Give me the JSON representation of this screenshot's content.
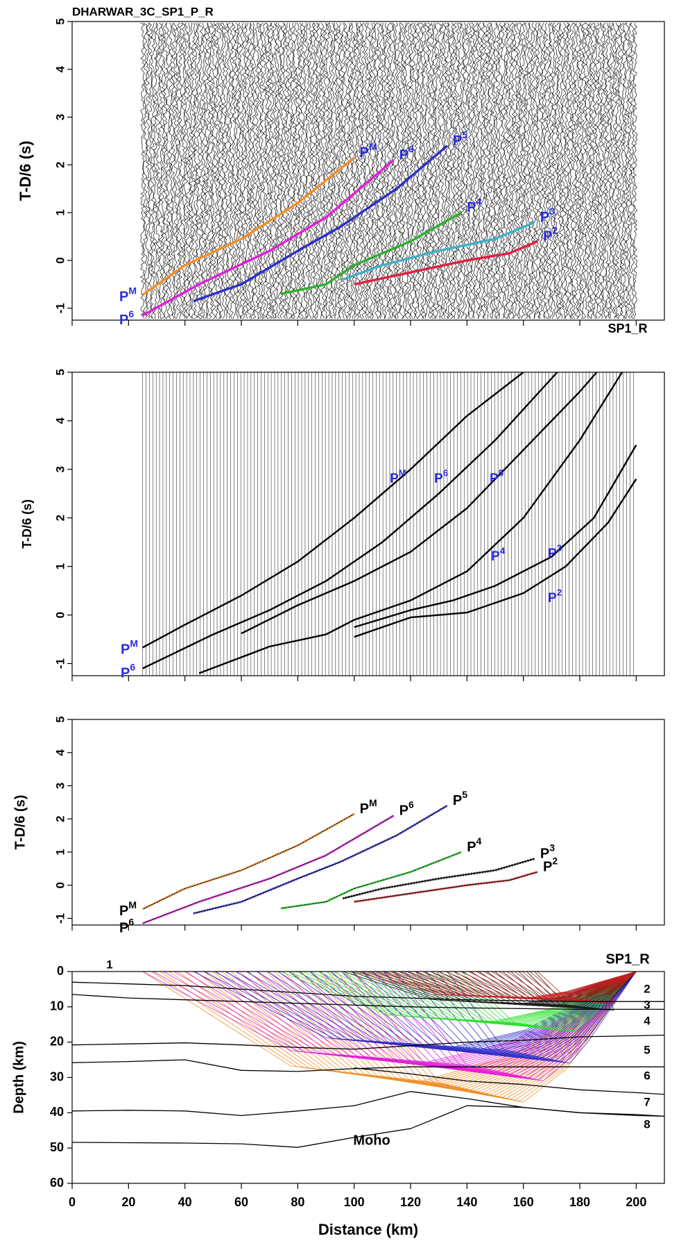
{
  "chart_data": [
    {
      "type": "line",
      "title": "DHARWAR_3C_SP1_P_R",
      "y_label": "T-D/6 (s)",
      "annotations": [
        "SP1_R"
      ],
      "xlim": [
        0,
        210
      ],
      "ylim": [
        -1.25,
        5
      ],
      "yticks": [
        -1,
        0,
        1,
        2,
        3,
        4,
        5
      ],
      "label_color": "#2a2ae0",
      "series": [
        {
          "name": "P",
          "superscript": "M",
          "color": "#f0902a",
          "x": [
            25,
            40,
            60,
            80,
            100
          ],
          "values": [
            -0.72,
            -0.1,
            0.45,
            1.2,
            2.15
          ]
        },
        {
          "name": "P",
          "superscript": "6",
          "color": "#e020d8",
          "x": [
            25,
            45,
            70,
            90,
            114
          ],
          "values": [
            -1.15,
            -0.5,
            0.2,
            0.9,
            2.1
          ]
        },
        {
          "name": "P",
          "superscript": "5",
          "color": "#3030c8",
          "x": [
            43,
            60,
            80,
            95,
            115,
            133
          ],
          "values": [
            -0.85,
            -0.5,
            0.2,
            0.7,
            1.5,
            2.4
          ]
        },
        {
          "name": "P",
          "superscript": "4",
          "color": "#30b030",
          "x": [
            74,
            90,
            100,
            120,
            138
          ],
          "values": [
            -0.7,
            -0.5,
            -0.1,
            0.4,
            1.0
          ]
        },
        {
          "name": "P",
          "superscript": "3",
          "color": "#40b0c8",
          "x": [
            96,
            110,
            130,
            150,
            164
          ],
          "values": [
            -0.4,
            -0.1,
            0.2,
            0.45,
            0.8
          ]
        },
        {
          "name": "P",
          "superscript": "2",
          "color": "#e02040",
          "x": [
            100,
            120,
            140,
            155,
            165
          ],
          "values": [
            -0.5,
            -0.25,
            0.0,
            0.15,
            0.4
          ]
        }
      ]
    },
    {
      "type": "line",
      "y_label": "T-D/6 (s)",
      "xlim": [
        0,
        210
      ],
      "ylim": [
        -1.25,
        5
      ],
      "yticks": [
        -1,
        0,
        1,
        2,
        3,
        4,
        5
      ],
      "label_color": "#2a2ae0",
      "series": [
        {
          "name": "P",
          "superscript": "M",
          "color": "#000000",
          "x": [
            25,
            40,
            60,
            80,
            100,
            120,
            140,
            160
          ],
          "values": [
            -0.67,
            -0.2,
            0.4,
            1.1,
            2.0,
            3.0,
            4.1,
            5.0
          ]
        },
        {
          "name": "P",
          "superscript": "6",
          "color": "#000000",
          "x": [
            25,
            50,
            70,
            90,
            110,
            130,
            150,
            172
          ],
          "values": [
            -1.1,
            -0.4,
            0.1,
            0.7,
            1.5,
            2.5,
            3.6,
            5.0
          ]
        },
        {
          "name": "P",
          "superscript": "5",
          "color": "#000000",
          "x": [
            60,
            80,
            100,
            120,
            140,
            160,
            180,
            186
          ],
          "values": [
            -0.38,
            0.2,
            0.7,
            1.3,
            2.2,
            3.4,
            4.6,
            5.0
          ]
        },
        {
          "name": "P",
          "superscript": "4",
          "color": "#000000",
          "x": [
            45,
            70,
            90,
            100,
            120,
            140,
            160,
            180,
            195
          ],
          "values": [
            -1.2,
            -0.65,
            -0.4,
            -0.1,
            0.3,
            0.9,
            2.0,
            3.6,
            5.0
          ]
        },
        {
          "name": "P",
          "superscript": "3",
          "color": "#000000",
          "x": [
            100,
            120,
            135,
            150,
            170,
            185,
            200
          ],
          "values": [
            -0.25,
            0.1,
            0.3,
            0.6,
            1.2,
            2.0,
            3.5
          ]
        },
        {
          "name": "P",
          "superscript": "2",
          "color": "#000000",
          "x": [
            100,
            120,
            140,
            160,
            175,
            190,
            200
          ],
          "values": [
            -0.45,
            -0.05,
            0.05,
            0.45,
            1.0,
            1.9,
            2.8
          ]
        }
      ]
    },
    {
      "type": "line",
      "y_label": "T-D/6 (s)",
      "xlim": [
        0,
        210
      ],
      "ylim": [
        -1.2,
        5
      ],
      "yticks": [
        -1,
        0,
        1,
        2,
        3,
        4,
        5
      ],
      "label_color": "#000000",
      "series": [
        {
          "name": "P",
          "superscript": "M",
          "color": "#f0902a",
          "x": [
            25,
            40,
            60,
            80,
            100
          ],
          "values": [
            -0.72,
            -0.1,
            0.45,
            1.2,
            2.15
          ]
        },
        {
          "name": "P",
          "superscript": "6",
          "color": "#e020d8",
          "x": [
            25,
            45,
            70,
            90,
            114
          ],
          "values": [
            -1.15,
            -0.5,
            0.2,
            0.9,
            2.1
          ]
        },
        {
          "name": "P",
          "superscript": "5",
          "color": "#3030c8",
          "x": [
            43,
            60,
            80,
            95,
            115,
            133
          ],
          "values": [
            -0.85,
            -0.5,
            0.2,
            0.7,
            1.5,
            2.4
          ]
        },
        {
          "name": "P",
          "superscript": "4",
          "color": "#30e030",
          "x": [
            74,
            90,
            100,
            120,
            138
          ],
          "values": [
            -0.7,
            -0.5,
            -0.1,
            0.4,
            1.0
          ]
        },
        {
          "name": "P",
          "superscript": "3",
          "color": "#202020",
          "x": [
            96,
            110,
            130,
            150,
            164
          ],
          "values": [
            -0.4,
            -0.1,
            0.2,
            0.45,
            0.8
          ]
        },
        {
          "name": "P",
          "superscript": "2",
          "color": "#c02020",
          "x": [
            100,
            120,
            140,
            155,
            165
          ],
          "values": [
            -0.5,
            -0.25,
            0.0,
            0.15,
            0.4
          ]
        }
      ]
    },
    {
      "type": "line",
      "x_label": "Distance (km)",
      "y_label": "Depth (km)",
      "annotations": [
        "1",
        "2",
        "3",
        "4",
        "5",
        "6",
        "7",
        "8",
        "Moho",
        "SP1_R"
      ],
      "xlim": [
        0,
        210
      ],
      "ylim": [
        60,
        0
      ],
      "xticks": [
        0,
        20,
        40,
        60,
        80,
        100,
        120,
        140,
        160,
        180,
        200
      ],
      "yticks": [
        0,
        10,
        20,
        30,
        40,
        50,
        60
      ],
      "x": [
        0,
        20,
        40,
        60,
        80,
        100,
        120,
        140,
        160,
        180,
        200,
        210
      ],
      "series": [
        {
          "color": "#000000",
          "values": [
            3,
            3.5,
            4,
            5,
            6,
            7,
            7.5,
            8,
            8.3,
            8.5,
            8.5,
            8.5
          ]
        },
        {
          "color": "#000000",
          "values": [
            6.5,
            7.5,
            8,
            8.5,
            9,
            9.5,
            10,
            10.3,
            10.5,
            10.7,
            10.7,
            10.7
          ]
        },
        {
          "color": "#000000",
          "values": [
            20.8,
            20.5,
            20.2,
            20.8,
            21.5,
            22,
            21,
            20,
            19.5,
            18.5,
            18.2,
            18
          ]
        },
        {
          "color": "#000000",
          "values": [
            25.8,
            25.5,
            25,
            28,
            28.3,
            27.5,
            27,
            27,
            27,
            27,
            27,
            27
          ]
        },
        {
          "color": "#000000",
          "values": [
            null,
            null,
            null,
            null,
            null,
            27.3,
            29,
            31,
            32,
            33.5,
            34.3,
            34.8
          ]
        },
        {
          "color": "#000000",
          "values": [
            39.5,
            39.3,
            39.5,
            40.8,
            39.5,
            38,
            34,
            36,
            38.5,
            40,
            40.5,
            41
          ]
        },
        {
          "color": "#000000",
          "values": [
            48.4,
            48.5,
            48.6,
            48.8,
            49.8,
            47,
            44.5,
            38,
            38.5,
            40,
            40.8,
            41
          ]
        }
      ]
    }
  ]
}
